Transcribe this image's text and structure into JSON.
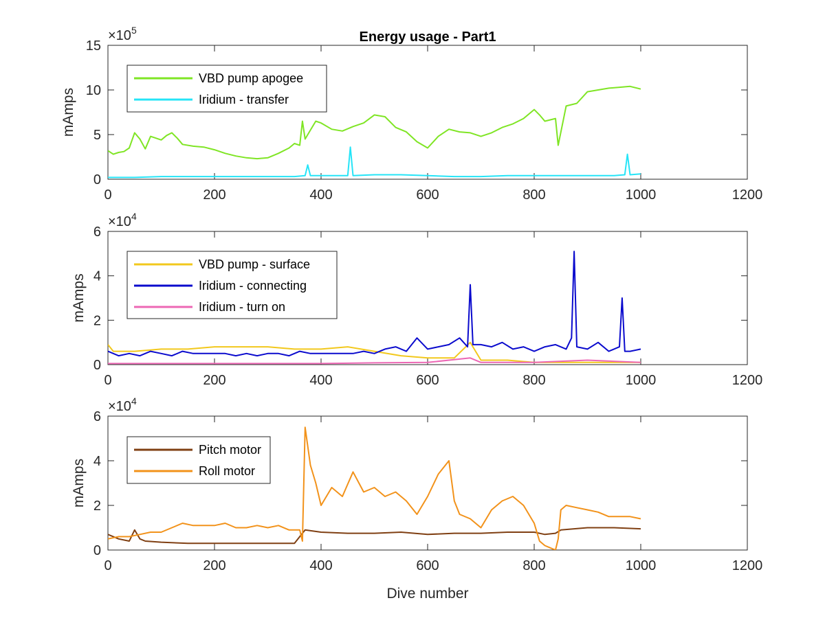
{
  "chart_data": [
    {
      "type": "line",
      "title": "Energy usage - Part1",
      "xlabel": "",
      "ylabel": "mAmps",
      "xlim": [
        0,
        1200
      ],
      "ylim": [
        0,
        15
      ],
      "x_ticks": [
        "0",
        "200",
        "400",
        "600",
        "800",
        "1000",
        "1200"
      ],
      "y_ticks": [
        "0",
        "5",
        "10",
        "15"
      ],
      "y_multiplier": {
        "base": "×10",
        "exp": "5"
      },
      "grid": false,
      "legend_position": "top-left",
      "series": [
        {
          "name": "VBD pump apogee",
          "color": "#7FE524",
          "x": [
            0,
            10,
            20,
            30,
            40,
            50,
            60,
            70,
            80,
            90,
            100,
            110,
            120,
            130,
            140,
            160,
            180,
            200,
            220,
            240,
            260,
            280,
            300,
            320,
            340,
            350,
            360,
            365,
            370,
            380,
            390,
            400,
            420,
            440,
            460,
            480,
            500,
            520,
            540,
            560,
            580,
            600,
            620,
            640,
            660,
            680,
            700,
            720,
            740,
            760,
            780,
            800,
            810,
            820,
            840,
            845,
            860,
            880,
            900,
            920,
            940,
            960,
            980,
            1000
          ],
          "y": [
            3.2,
            2.8,
            3.0,
            3.1,
            3.5,
            5.2,
            4.5,
            3.4,
            4.8,
            4.6,
            4.4,
            4.9,
            5.2,
            4.6,
            3.9,
            3.7,
            3.6,
            3.3,
            2.9,
            2.6,
            2.4,
            2.3,
            2.4,
            2.9,
            3.5,
            4.0,
            3.8,
            6.5,
            4.5,
            5.5,
            6.5,
            6.3,
            5.6,
            5.4,
            5.9,
            6.3,
            7.2,
            7.0,
            5.8,
            5.3,
            4.2,
            3.5,
            4.8,
            5.6,
            5.3,
            5.2,
            4.8,
            5.2,
            5.8,
            6.2,
            6.8,
            7.8,
            7.2,
            6.5,
            6.8,
            3.8,
            8.2,
            8.5,
            9.8,
            10.0,
            10.2,
            10.3,
            10.4,
            10.1
          ]
        },
        {
          "name": "Iridium - transfer",
          "color": "#25E4F7",
          "x": [
            0,
            50,
            100,
            150,
            200,
            250,
            300,
            350,
            370,
            375,
            380,
            400,
            450,
            455,
            460,
            500,
            550,
            600,
            650,
            700,
            750,
            800,
            850,
            900,
            950,
            970,
            975,
            980,
            1000
          ],
          "y": [
            0.2,
            0.2,
            0.3,
            0.3,
            0.3,
            0.3,
            0.3,
            0.3,
            0.4,
            1.6,
            0.4,
            0.4,
            0.4,
            3.6,
            0.4,
            0.5,
            0.5,
            0.4,
            0.3,
            0.3,
            0.4,
            0.4,
            0.4,
            0.4,
            0.4,
            0.5,
            2.8,
            0.5,
            0.6
          ]
        }
      ]
    },
    {
      "type": "line",
      "title": "",
      "xlabel": "",
      "ylabel": "mAmps",
      "xlim": [
        0,
        1200
      ],
      "ylim": [
        0,
        6
      ],
      "x_ticks": [
        "0",
        "200",
        "400",
        "600",
        "800",
        "1000",
        "1200"
      ],
      "y_ticks": [
        "0",
        "2",
        "4",
        "6"
      ],
      "y_multiplier": {
        "base": "×10",
        "exp": "4"
      },
      "grid": false,
      "legend_position": "top-left",
      "series": [
        {
          "name": "VBD pump - surface",
          "color": "#F2C81C",
          "x": [
            0,
            10,
            50,
            100,
            150,
            200,
            250,
            300,
            350,
            400,
            450,
            500,
            550,
            600,
            650,
            680,
            700,
            750,
            800,
            850,
            900,
            950,
            1000
          ],
          "y": [
            0.9,
            0.6,
            0.6,
            0.7,
            0.7,
            0.8,
            0.8,
            0.8,
            0.7,
            0.7,
            0.8,
            0.6,
            0.4,
            0.3,
            0.3,
            1.0,
            0.2,
            0.2,
            0.1,
            0.1,
            0.1,
            0.1,
            0.1
          ]
        },
        {
          "name": "Iridium - connecting",
          "color": "#0A0ACD",
          "x": [
            0,
            20,
            40,
            60,
            80,
            100,
            120,
            140,
            160,
            180,
            200,
            220,
            240,
            260,
            280,
            300,
            320,
            340,
            360,
            380,
            400,
            420,
            440,
            460,
            480,
            500,
            520,
            540,
            560,
            580,
            600,
            620,
            640,
            660,
            675,
            680,
            685,
            700,
            720,
            740,
            760,
            780,
            800,
            820,
            840,
            860,
            870,
            875,
            880,
            900,
            920,
            940,
            960,
            965,
            970,
            980,
            1000
          ],
          "y": [
            0.6,
            0.4,
            0.5,
            0.4,
            0.6,
            0.5,
            0.4,
            0.6,
            0.5,
            0.5,
            0.5,
            0.5,
            0.4,
            0.5,
            0.4,
            0.5,
            0.5,
            0.4,
            0.6,
            0.5,
            0.5,
            0.5,
            0.5,
            0.5,
            0.6,
            0.5,
            0.7,
            0.8,
            0.6,
            1.2,
            0.7,
            0.8,
            0.9,
            1.2,
            0.8,
            3.6,
            0.9,
            0.9,
            0.8,
            1.0,
            0.7,
            0.8,
            0.6,
            0.8,
            0.9,
            0.7,
            1.2,
            5.1,
            0.8,
            0.7,
            1.0,
            0.6,
            0.8,
            3.0,
            0.6,
            0.6,
            0.7
          ]
        },
        {
          "name": "Iridium - turn on",
          "color": "#EC67B4",
          "x": [
            0,
            100,
            200,
            300,
            400,
            500,
            600,
            680,
            700,
            800,
            900,
            1000
          ],
          "y": [
            0.05,
            0.05,
            0.05,
            0.05,
            0.05,
            0.08,
            0.1,
            0.3,
            0.1,
            0.1,
            0.2,
            0.1
          ]
        }
      ]
    },
    {
      "type": "line",
      "title": "",
      "xlabel": "Dive number",
      "ylabel": "mAmps",
      "xlim": [
        0,
        1200
      ],
      "ylim": [
        0,
        6
      ],
      "x_ticks": [
        "0",
        "200",
        "400",
        "600",
        "800",
        "1000",
        "1200"
      ],
      "y_ticks": [
        "0",
        "2",
        "4",
        "6"
      ],
      "y_multiplier": {
        "base": "×10",
        "exp": "4"
      },
      "grid": false,
      "legend_position": "top-left",
      "series": [
        {
          "name": "Pitch motor",
          "color": "#7F3F12",
          "x": [
            0,
            20,
            40,
            50,
            60,
            70,
            100,
            150,
            200,
            250,
            300,
            350,
            360,
            370,
            400,
            450,
            500,
            550,
            600,
            650,
            700,
            750,
            800,
            820,
            840,
            850,
            900,
            950,
            1000
          ],
          "y": [
            0.7,
            0.5,
            0.4,
            0.9,
            0.5,
            0.4,
            0.35,
            0.3,
            0.3,
            0.3,
            0.3,
            0.3,
            0.6,
            0.9,
            0.8,
            0.75,
            0.75,
            0.8,
            0.7,
            0.75,
            0.75,
            0.8,
            0.8,
            0.7,
            0.75,
            0.9,
            1.0,
            1.0,
            0.95
          ]
        },
        {
          "name": "Roll motor",
          "color": "#F2921A",
          "x": [
            0,
            20,
            40,
            60,
            80,
            100,
            120,
            140,
            160,
            180,
            200,
            220,
            240,
            260,
            280,
            300,
            320,
            340,
            360,
            365,
            370,
            380,
            390,
            400,
            420,
            440,
            460,
            480,
            500,
            520,
            540,
            560,
            580,
            600,
            620,
            640,
            650,
            660,
            680,
            700,
            720,
            740,
            760,
            780,
            800,
            810,
            820,
            830,
            840,
            845,
            850,
            860,
            880,
            900,
            920,
            940,
            960,
            980,
            1000
          ],
          "y": [
            0.5,
            0.6,
            0.6,
            0.7,
            0.8,
            0.8,
            1.0,
            1.2,
            1.1,
            1.1,
            1.1,
            1.2,
            1.0,
            1.0,
            1.1,
            1.0,
            1.1,
            0.9,
            0.9,
            0.4,
            5.5,
            3.8,
            3.0,
            2.0,
            2.8,
            2.4,
            3.5,
            2.6,
            2.8,
            2.4,
            2.6,
            2.2,
            1.6,
            2.4,
            3.4,
            4.0,
            2.2,
            1.6,
            1.4,
            1.0,
            1.8,
            2.2,
            2.4,
            2.0,
            1.2,
            0.4,
            0.2,
            0.1,
            0.0,
            0.5,
            1.8,
            2.0,
            1.9,
            1.8,
            1.7,
            1.5,
            1.5,
            1.5,
            1.4
          ]
        }
      ]
    }
  ]
}
